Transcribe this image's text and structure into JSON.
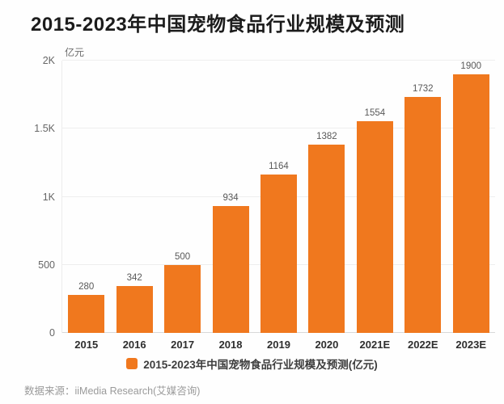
{
  "title": "2015-2023年中国宠物食品行业规模及预测",
  "y_axis": {
    "unit_label": "亿元",
    "ticks": [
      {
        "value": 0,
        "label": "0"
      },
      {
        "value": 500,
        "label": "500"
      },
      {
        "value": 1000,
        "label": "1K"
      },
      {
        "value": 1500,
        "label": "1.5K"
      },
      {
        "value": 2000,
        "label": "2K"
      }
    ]
  },
  "chart_data": {
    "type": "bar",
    "categories": [
      "2015",
      "2016",
      "2017",
      "2018",
      "2019",
      "2020",
      "2021E",
      "2022E",
      "2023E"
    ],
    "values": [
      280,
      342,
      500,
      934,
      1164,
      1382,
      1554,
      1732,
      1900
    ],
    "title": "2015-2023年中国宠物食品行业规模及预测",
    "xlabel": "",
    "ylabel": "亿元",
    "ylim": [
      0,
      2000
    ],
    "grid": true,
    "legend_position": "bottom",
    "bar_color": "#F0781E"
  },
  "legend": {
    "label": "2015-2023年中国宠物食品行业规模及预测(亿元)",
    "swatch_color": "#F0781E"
  },
  "source": "数据来源：iiMedia Research(艾媒咨询)"
}
